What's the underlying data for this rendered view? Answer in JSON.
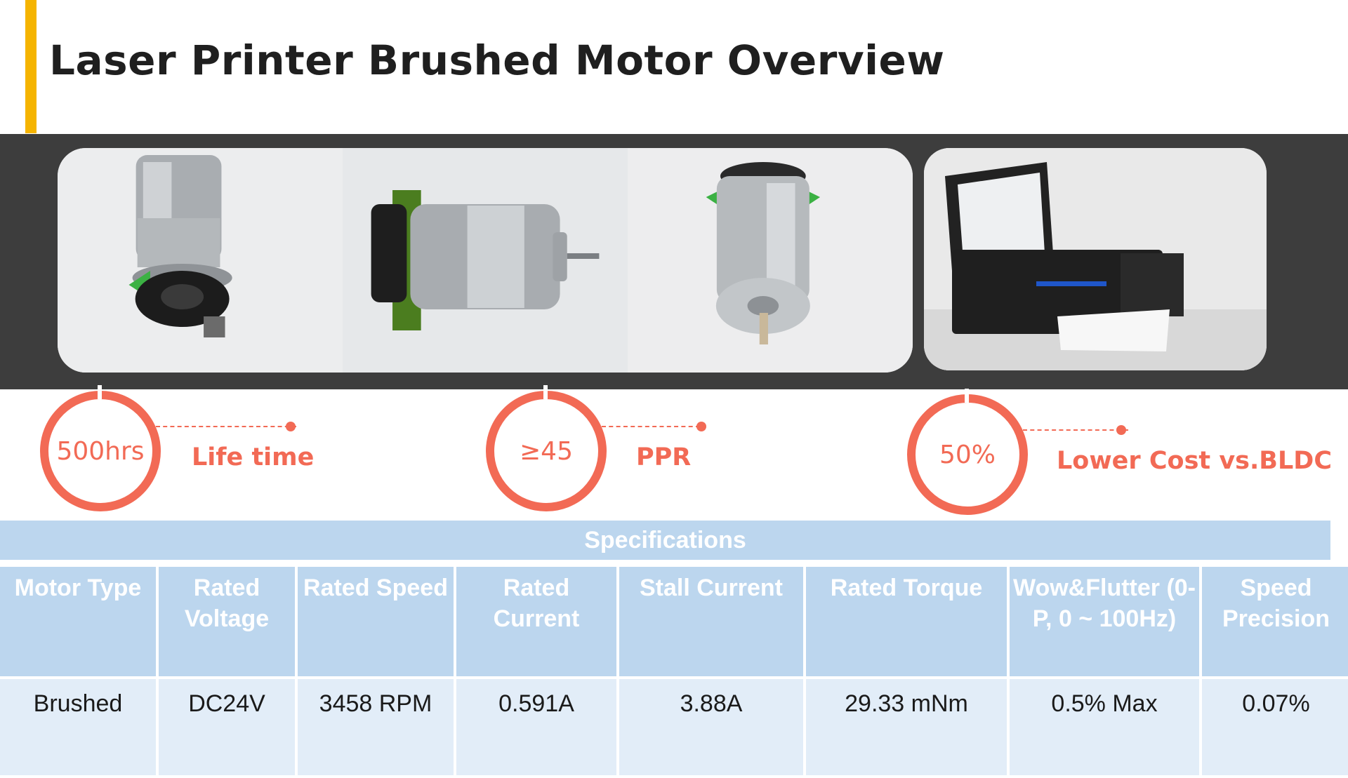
{
  "title": "Laser Printer Brushed Motor Overview",
  "colors": {
    "accent": "#f5b400",
    "highlight": "#f26a55",
    "table_header": "#bcd6ee",
    "table_cell": "#e2edf8",
    "band": "#3d3d3d"
  },
  "stats": [
    {
      "value": "500hrs",
      "label": "Life time"
    },
    {
      "value": "≥45",
      "label": "PPR"
    },
    {
      "value": "50%",
      "label": "Lower Cost vs.BLDC"
    }
  ],
  "specifications": {
    "title": "Specifications",
    "headers": [
      "Motor Type",
      "Rated Voltage",
      "Rated Speed",
      "Rated Current",
      "Stall Current",
      "Rated Torque",
      "Wow&Flutter (0-P, 0 ~ 100Hz)",
      "Speed Precision"
    ],
    "row": [
      "Brushed",
      "DC24V",
      "3458 RPM",
      "0.591A",
      "3.88A",
      "29.33 mNm",
      "0.5% Max",
      "0.07%"
    ]
  }
}
